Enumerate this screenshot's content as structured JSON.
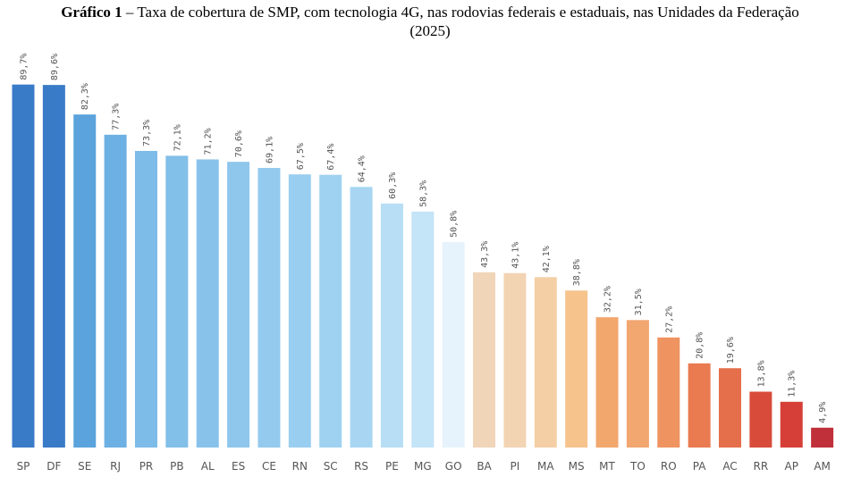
{
  "chart_data": {
    "type": "bar",
    "title_label": "Gráfico 1",
    "title": "– Taxa de cobertura de SMP, com tecnologia 4G, nas rodovias federais e estaduais, nas Unidades da Federação",
    "subtitle": "(2025)",
    "categories": [
      "SP",
      "DF",
      "SE",
      "RJ",
      "PR",
      "PB",
      "AL",
      "ES",
      "CE",
      "RN",
      "SC",
      "RS",
      "PE",
      "MG",
      "GO",
      "BA",
      "PI",
      "MA",
      "MS",
      "MT",
      "TO",
      "RO",
      "PA",
      "AC",
      "RR",
      "AP",
      "AM"
    ],
    "values": [
      89.7,
      89.6,
      82.3,
      77.3,
      73.3,
      72.1,
      71.2,
      70.6,
      69.1,
      67.5,
      67.4,
      64.4,
      60.3,
      58.3,
      50.8,
      43.3,
      43.1,
      42.1,
      38.8,
      32.2,
      31.5,
      27.2,
      20.8,
      19.6,
      13.8,
      11.3,
      4.9
    ],
    "value_labels": [
      "89,7%",
      "89,6%",
      "82,3%",
      "77,3%",
      "73,3%",
      "72,1%",
      "71,2%",
      "70,6%",
      "69,1%",
      "67,5%",
      "67,4%",
      "64,4%",
      "60,3%",
      "58,3%",
      "50,8%",
      "43,3%",
      "43,1%",
      "42,1%",
      "38,8%",
      "32,2%",
      "31,5%",
      "27,2%",
      "20,8%",
      "19,6%",
      "13,8%",
      "11,3%",
      "4,9%"
    ],
    "colors": [
      "#3a7bc8",
      "#3a7bc8",
      "#5aa3dc",
      "#6db0e3",
      "#7dbbe8",
      "#82bfe9",
      "#88c2ea",
      "#8ec6ec",
      "#93caee",
      "#9acef0",
      "#9fd1f0",
      "#a8d6f2",
      "#b7def5",
      "#c4e4f7",
      "#e6f3fc",
      "#f0d5b8",
      "#f2d4b3",
      "#f4cfa6",
      "#f6c38d",
      "#f2a76d",
      "#f2a670",
      "#ef9360",
      "#ea7a50",
      "#e56f4b",
      "#d84b3a",
      "#d63f38",
      "#c0303a"
    ]
  }
}
